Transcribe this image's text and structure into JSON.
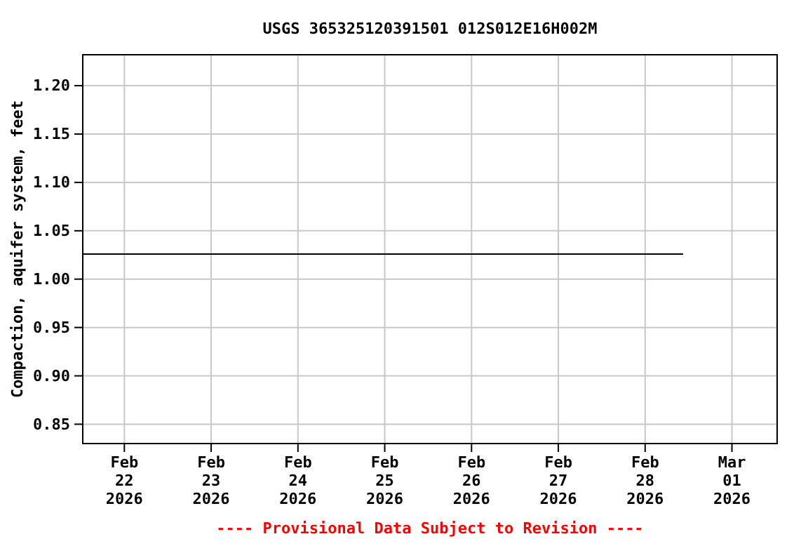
{
  "chart_data": {
    "type": "line",
    "title": "USGS 365325120391501 012S012E16H002M",
    "ylabel": "Compaction, aquifer system, feet",
    "x": [
      "2026-02-21T12:30",
      "2026-02-28T10:30"
    ],
    "series": [
      {
        "color": "#000000",
        "values": [
          1.026,
          1.026
        ]
      }
    ],
    "xlim": [
      "2026-02-21T12:30",
      "2026-03-01T12:30"
    ],
    "xticks": [
      {
        "value": "2026-02-22",
        "label": "Feb\n22\n2026"
      },
      {
        "value": "2026-02-23",
        "label": "Feb\n23\n2026"
      },
      {
        "value": "2026-02-24",
        "label": "Feb\n24\n2026"
      },
      {
        "value": "2026-02-25",
        "label": "Feb\n25\n2026"
      },
      {
        "value": "2026-02-26",
        "label": "Feb\n26\n2026"
      },
      {
        "value": "2026-02-27",
        "label": "Feb\n27\n2026"
      },
      {
        "value": "2026-02-28",
        "label": "Feb\n28\n2026"
      },
      {
        "value": "2026-03-01",
        "label": "Mar\n01\n2026"
      }
    ],
    "ylim": [
      0.83,
      1.232
    ],
    "yticks": [
      {
        "value": 0.85,
        "label": "0.85"
      },
      {
        "value": 0.9,
        "label": "0.90"
      },
      {
        "value": 0.95,
        "label": "0.95"
      },
      {
        "value": 1.0,
        "label": "1.00"
      },
      {
        "value": 1.05,
        "label": "1.05"
      },
      {
        "value": 1.1,
        "label": "1.10"
      },
      {
        "value": 1.15,
        "label": "1.15"
      },
      {
        "value": 1.2,
        "label": "1.20"
      }
    ],
    "grid": true,
    "marker": "none",
    "line_style": "solid",
    "annotations": [
      "---- Provisional Data Subject to Revision ----"
    ]
  }
}
